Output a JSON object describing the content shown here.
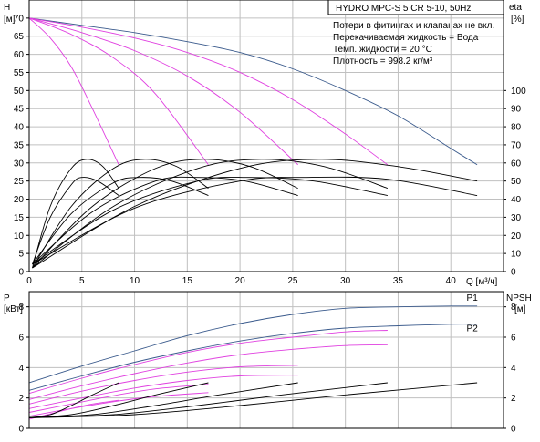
{
  "header": {
    "title": "HYDRO MPC-S 5 CR 5-10, 50Hz",
    "notes": [
      "Потери в фитингах и клапанах не вкл.",
      "Перекачиваемая жидкость = Вода",
      "Темп. жидкости = 20 °C",
      "Плотность = 998.2 кг/м³"
    ]
  },
  "colors": {
    "axis": "#000000",
    "grid": "#c0c0c0",
    "curve_black": "#000000",
    "curve_blue": "#3a5a8c",
    "curve_magenta": "#e040e0"
  },
  "chart_data": [
    {
      "type": "line",
      "name": "head_efficiency",
      "title": "",
      "xlabel": "Q [м³/ч]",
      "ylabel": "H [м]",
      "y2label": "eta [%]",
      "xlim": [
        0,
        45
      ],
      "ylim": [
        0,
        75
      ],
      "y2lim": [
        0,
        150
      ],
      "grid": true,
      "x_ticks": [
        0,
        5,
        10,
        15,
        20,
        25,
        30,
        35,
        40
      ],
      "y_ticks": [
        0,
        5,
        10,
        15,
        20,
        25,
        30,
        35,
        40,
        45,
        50,
        55,
        60,
        65,
        70
      ],
      "y2_ticks": [
        0,
        10,
        20,
        30,
        40,
        50,
        60,
        70,
        80,
        90,
        100
      ],
      "series": [
        {
          "color": "blue",
          "axis": "y",
          "x": [
            0,
            5,
            10,
            15,
            20,
            25,
            30,
            35,
            40,
            42.5
          ],
          "y": [
            70,
            68,
            66,
            63.5,
            60.5,
            56,
            50,
            43,
            34,
            29.5
          ]
        },
        {
          "color": "magenta",
          "axis": "y",
          "x": [
            0,
            5,
            10,
            15,
            20,
            25,
            30,
            34
          ],
          "y": [
            70,
            67.5,
            64.5,
            60.5,
            55,
            47.5,
            38,
            29.5
          ]
        },
        {
          "color": "magenta",
          "axis": "y",
          "x": [
            0,
            5,
            10,
            15,
            20,
            25.5
          ],
          "y": [
            70,
            66,
            61,
            54,
            44,
            29.5
          ]
        },
        {
          "color": "magenta",
          "axis": "y",
          "x": [
            0,
            4,
            8,
            12,
            17
          ],
          "y": [
            70,
            65.5,
            59,
            49,
            29.5
          ]
        },
        {
          "color": "magenta",
          "axis": "y",
          "x": [
            0,
            2,
            4,
            6,
            8.5
          ],
          "y": [
            70,
            64.5,
            56.5,
            45,
            29.5
          ]
        },
        {
          "color": "black",
          "axis": "y2",
          "x": [
            0.3,
            2,
            4,
            5.5,
            7,
            8.5
          ],
          "y": [
            2,
            36,
            57,
            62,
            58,
            46
          ]
        },
        {
          "color": "black",
          "axis": "y2",
          "x": [
            0.3,
            4,
            8,
            11,
            14,
            17
          ],
          "y": [
            2,
            36,
            57,
            62,
            58,
            46
          ]
        },
        {
          "color": "black",
          "axis": "y2",
          "x": [
            0.3,
            6,
            12,
            16.5,
            21,
            25.5
          ],
          "y": [
            2,
            36,
            57,
            62,
            58,
            46
          ]
        },
        {
          "color": "black",
          "axis": "y2",
          "x": [
            0.3,
            8,
            16,
            22,
            28,
            34
          ],
          "y": [
            2,
            36,
            57,
            62,
            58,
            46
          ]
        },
        {
          "color": "black",
          "axis": "y2",
          "x": [
            0.3,
            10,
            20,
            27.5,
            35,
            42.5
          ],
          "y": [
            2,
            36,
            57,
            62,
            58,
            50
          ]
        },
        {
          "color": "black",
          "axis": "y2",
          "x": [
            0.3,
            2,
            4,
            5,
            6.5,
            8.5
          ],
          "y": [
            4,
            30,
            48,
            52,
            50,
            42
          ]
        },
        {
          "color": "black",
          "axis": "y2",
          "x": [
            0.3,
            4,
            8,
            10.5,
            13.5,
            17
          ],
          "y": [
            4,
            32,
            49,
            52,
            50,
            42
          ]
        },
        {
          "color": "black",
          "axis": "y2",
          "x": [
            0.3,
            6,
            12,
            16,
            20.5,
            25.5
          ],
          "y": [
            4,
            33,
            50,
            52,
            50,
            42
          ]
        },
        {
          "color": "black",
          "axis": "y2",
          "x": [
            0.3,
            8,
            16,
            21,
            27,
            34
          ],
          "y": [
            4,
            34,
            50,
            52,
            50,
            42
          ]
        },
        {
          "color": "black",
          "axis": "y2",
          "x": [
            0.3,
            10,
            20,
            26,
            34,
            42.5
          ],
          "y": [
            4,
            35,
            50,
            52,
            51,
            42
          ]
        }
      ]
    },
    {
      "type": "line",
      "name": "power_npsh",
      "title": "",
      "ylabel": "P [кВт]",
      "y2label": "NPSH [м]",
      "xlim": [
        0,
        45
      ],
      "ylim": [
        0,
        9
      ],
      "y2lim": [
        0,
        9
      ],
      "grid": true,
      "x_ticks": [
        0,
        5,
        10,
        15,
        20,
        25,
        30,
        35,
        40
      ],
      "y_ticks": [
        0,
        2,
        4,
        6,
        8
      ],
      "y2_ticks": [
        0,
        2,
        4,
        6,
        8
      ],
      "labels": [
        {
          "text": "P1",
          "x": 41.5,
          "y": 8.4
        },
        {
          "text": "P2",
          "x": 41.5,
          "y": 6.4
        }
      ],
      "series": [
        {
          "color": "blue",
          "x": [
            0,
            5,
            10,
            15,
            20,
            25,
            30,
            35,
            40,
            42.5
          ],
          "y": [
            3.0,
            4.1,
            5.1,
            6.1,
            6.9,
            7.5,
            7.9,
            8.0,
            8.05,
            8.05
          ]
        },
        {
          "color": "blue",
          "x": [
            0,
            5,
            10,
            15,
            20,
            25,
            30,
            35,
            40,
            42.5
          ],
          "y": [
            2.5,
            3.45,
            4.35,
            5.1,
            5.75,
            6.25,
            6.6,
            6.75,
            6.85,
            6.85
          ]
        },
        {
          "color": "magenta",
          "x": [
            0,
            5,
            10,
            15,
            20,
            25,
            30,
            34
          ],
          "y": [
            2.3,
            3.3,
            4.2,
            5.0,
            5.6,
            6.0,
            6.35,
            6.45
          ]
        },
        {
          "color": "magenta",
          "x": [
            0,
            5,
            10,
            15,
            20,
            25,
            30,
            34
          ],
          "y": [
            1.9,
            2.8,
            3.6,
            4.3,
            4.85,
            5.2,
            5.45,
            5.5
          ]
        },
        {
          "color": "magenta",
          "x": [
            0,
            5,
            10,
            15,
            20,
            25.5
          ],
          "y": [
            1.6,
            2.45,
            3.15,
            3.7,
            4.05,
            4.15
          ]
        },
        {
          "color": "magenta",
          "x": [
            0,
            5,
            10,
            15,
            20,
            25.5
          ],
          "y": [
            1.3,
            2.0,
            2.65,
            3.15,
            3.45,
            3.5
          ]
        },
        {
          "color": "magenta",
          "x": [
            0,
            4,
            8,
            12,
            17
          ],
          "y": [
            1.05,
            1.6,
            2.15,
            2.6,
            2.9
          ]
        },
        {
          "color": "magenta",
          "x": [
            0,
            4,
            8,
            12,
            17
          ],
          "y": [
            0.8,
            1.3,
            1.75,
            2.1,
            2.35
          ]
        },
        {
          "color": "magenta",
          "x": [
            0,
            2,
            4,
            6,
            8.5
          ],
          "y": [
            0.6,
            0.95,
            1.3,
            1.6,
            1.85
          ]
        },
        {
          "color": "black",
          "x": [
            0,
            2,
            4,
            6,
            8.5
          ],
          "y": [
            0.7,
            0.9,
            1.5,
            2.2,
            3.0
          ]
        },
        {
          "color": "black",
          "x": [
            0,
            4,
            8,
            12,
            17
          ],
          "y": [
            0.7,
            0.9,
            1.5,
            2.2,
            3.0
          ]
        },
        {
          "color": "black",
          "x": [
            0,
            6,
            12,
            18,
            25.5
          ],
          "y": [
            0.7,
            0.9,
            1.5,
            2.2,
            3.0
          ]
        },
        {
          "color": "black",
          "x": [
            0,
            8,
            16,
            24,
            34
          ],
          "y": [
            0.7,
            0.9,
            1.5,
            2.2,
            3.0
          ]
        },
        {
          "color": "black",
          "x": [
            0,
            10,
            20,
            30,
            42.5
          ],
          "y": [
            0.7,
            0.9,
            1.5,
            2.2,
            3.0
          ]
        }
      ]
    }
  ]
}
